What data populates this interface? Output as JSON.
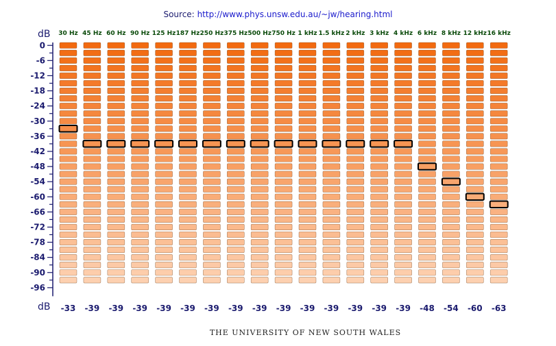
{
  "source": {
    "prefix": "Source:",
    "url": "http://www.phys.unsw.edu.au/~jw/hearing.html"
  },
  "footer": "THE UNIVERSITY OF NEW SOUTH WALES",
  "chart_data": {
    "type": "heatmap",
    "title": "",
    "ylabel": "dB",
    "xlabel": "dB",
    "categories": [
      "30 Hz",
      "45 Hz",
      "60 Hz",
      "90 Hz",
      "125 Hz",
      "187 Hz",
      "250 Hz",
      "375 Hz",
      "500 Hz",
      "750 Hz",
      "1 kHz",
      "1.5 kHz",
      "2 kHz",
      "3 kHz",
      "4 kHz",
      "6 kHz",
      "8 kHz",
      "12 kHz",
      "16 kHz"
    ],
    "y_ticks": [
      0,
      -6,
      -12,
      -18,
      -24,
      -30,
      -36,
      -42,
      -48,
      -54,
      -60,
      -66,
      -72,
      -78,
      -84,
      -90,
      -96
    ],
    "y_tick_labels": [
      "0",
      "-6",
      "-12",
      "-18",
      "-24",
      "-30",
      "-36",
      "-42",
      "-48",
      "-54",
      "-60",
      "-66",
      "-72",
      "-78",
      "-84",
      "-90",
      "-96"
    ],
    "ylim": [
      0,
      -100
    ],
    "level_step_db": 3,
    "thresholds": [
      -33,
      -39,
      -39,
      -39,
      -39,
      -39,
      -39,
      -39,
      -39,
      -39,
      -39,
      -39,
      -39,
      -39,
      -39,
      -48,
      -54,
      -60,
      -63
    ],
    "threshold_labels": [
      "-33",
      "-39",
      "-39",
      "-39",
      "-39",
      "-39",
      "-39",
      "-39",
      "-39",
      "-39",
      "-39",
      "-39",
      "-39",
      "-39",
      "-39",
      "-48",
      "-54",
      "-60",
      "-63"
    ],
    "colors": {
      "loud": "#f26a10",
      "quiet": "#fdd0b0",
      "marker_border": "#000000",
      "box_border": "#6a3a10"
    }
  }
}
